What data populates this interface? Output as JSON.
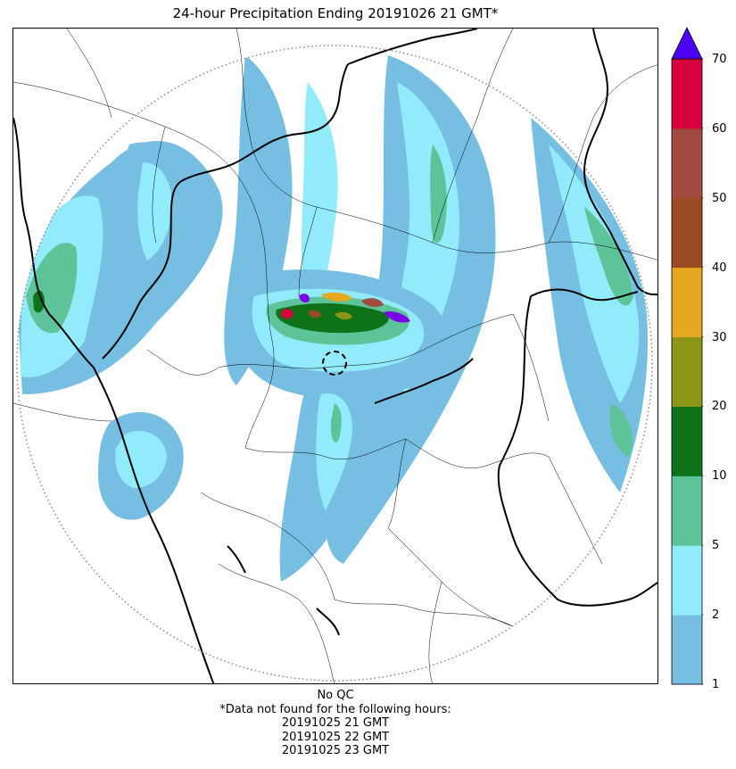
{
  "title": "24-hour Precipitation Ending 20191026 21 GMT*",
  "colorbar": {
    "ticks": [
      "1",
      "2",
      "5",
      "10",
      "20",
      "30",
      "40",
      "50",
      "60",
      "70"
    ],
    "colors": [
      "#77bee3",
      "#92ebfa",
      "#5dc398",
      "#0e7219",
      "#8c9516",
      "#e6a81e",
      "#9a4b22",
      "#a34a40",
      "#d5003c"
    ],
    "extend_color": "#4c00f4"
  },
  "map": {
    "precip_colors": [
      "#77bee3",
      "#92ebfa",
      "#5dc398",
      "#0e7219",
      "#8c9516",
      "#e6a81e",
      "#9a4b22",
      "#a34a40",
      "#d5003c",
      "#7a00e8"
    ],
    "boundary_color": "#000000",
    "range_ring_color": "#888888"
  },
  "footer": {
    "line1": "No QC",
    "line2": "*Data not found for the following hours:",
    "line3": "20191025 21 GMT",
    "line4": "20191025 22 GMT",
    "line5": "20191025 23 GMT"
  }
}
